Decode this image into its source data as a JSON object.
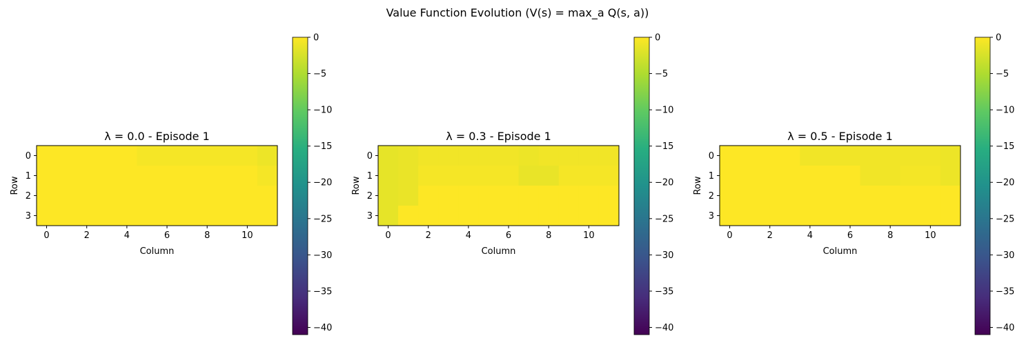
{
  "chart_data": {
    "suptitle": "Value Function Evolution (V(s) = max_a Q(s, a))",
    "panels": [
      {
        "type": "heatmap",
        "title": "λ = 0.0 - Episode 1",
        "xlabel": "Column",
        "ylabel": "Row",
        "rows": 4,
        "cols": 12,
        "x_ticks": [
          0,
          2,
          4,
          6,
          8,
          10
        ],
        "y_ticks": [
          0,
          1,
          2,
          3
        ],
        "colormap": "viridis",
        "vmin": -41,
        "vmax": 0,
        "colorbar_ticks": [
          0,
          -5,
          -10,
          -15,
          -20,
          -25,
          -30,
          -35,
          -40
        ],
        "values": [
          [
            0,
            0,
            0,
            0,
            0,
            -0.5,
            -0.5,
            -0.5,
            -0.5,
            -0.5,
            -0.5,
            -1
          ],
          [
            0,
            0,
            0,
            0,
            0,
            0,
            0,
            0,
            0,
            0,
            0,
            -0.5
          ],
          [
            0,
            0,
            0,
            0,
            0,
            0,
            0,
            0,
            0,
            0,
            0,
            0
          ],
          [
            0,
            0,
            0,
            0,
            0,
            0,
            0,
            0,
            0,
            0,
            0,
            0
          ]
        ]
      },
      {
        "type": "heatmap",
        "title": "λ = 0.3 - Episode 1",
        "xlabel": "Column",
        "ylabel": "Row",
        "rows": 4,
        "cols": 12,
        "x_ticks": [
          0,
          2,
          4,
          6,
          8,
          10
        ],
        "y_ticks": [
          0,
          1,
          2,
          3
        ],
        "colormap": "viridis",
        "vmin": -41,
        "vmax": 0,
        "colorbar_ticks": [
          0,
          -5,
          -10,
          -15,
          -20,
          -25,
          -30,
          -35,
          -40
        ],
        "values": [
          [
            -1.5,
            -1.2,
            -0.8,
            -0.8,
            -0.8,
            -0.8,
            -0.8,
            -1,
            -0.8,
            -0.8,
            -0.8,
            -0.8
          ],
          [
            -1.5,
            -1.2,
            -0.5,
            -0.5,
            -0.5,
            -0.5,
            -0.5,
            -1.3,
            -1.3,
            -0.5,
            -0.5,
            -0.5
          ],
          [
            -1.5,
            -1.2,
            0,
            0,
            0,
            0,
            0,
            0,
            0,
            0,
            0,
            0
          ],
          [
            -1.5,
            0,
            0,
            0,
            0,
            0,
            0,
            0,
            0,
            0,
            0,
            0
          ]
        ]
      },
      {
        "type": "heatmap",
        "title": "λ = 0.5 - Episode 1",
        "xlabel": "Column",
        "ylabel": "Row",
        "rows": 4,
        "cols": 12,
        "x_ticks": [
          0,
          2,
          4,
          6,
          8,
          10
        ],
        "y_ticks": [
          0,
          1,
          2,
          3
        ],
        "colormap": "viridis",
        "vmin": -41,
        "vmax": 0,
        "colorbar_ticks": [
          0,
          -5,
          -10,
          -15,
          -20,
          -25,
          -30,
          -35,
          -40
        ],
        "values": [
          [
            0,
            0,
            0,
            0,
            -0.8,
            -0.8,
            -0.8,
            -0.8,
            -0.8,
            -0.8,
            -0.8,
            -1
          ],
          [
            0,
            0,
            0,
            0,
            0,
            0,
            0,
            -0.8,
            -0.8,
            -0.6,
            -0.6,
            -1
          ],
          [
            0,
            0,
            0,
            0,
            0,
            0,
            0,
            0,
            0,
            0,
            0,
            0
          ],
          [
            0,
            0,
            0,
            0,
            0,
            0,
            0,
            0,
            0,
            0,
            0,
            0
          ]
        ]
      }
    ]
  }
}
